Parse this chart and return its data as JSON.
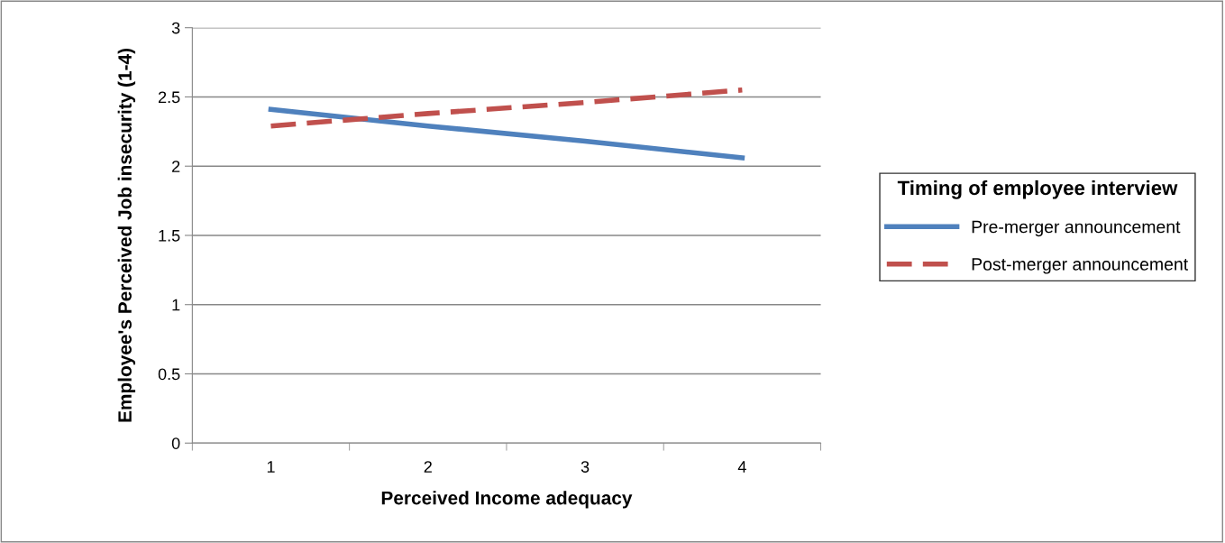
{
  "chart_data": {
    "type": "line",
    "xlabel": "Perceived Income adequacy",
    "ylabel": "Employee's Perceived Job insecurity (1-4)",
    "legend_title": "Timing of employee interview",
    "categories": [
      "1",
      "2",
      "3",
      "4"
    ],
    "series": [
      {
        "name": "Pre-merger announcement",
        "color": "#4f81bd",
        "values": [
          2.41,
          2.29,
          2.18,
          2.06
        ],
        "line_style": "solid"
      },
      {
        "name": "Post-merger announcement",
        "color": "#c0504d",
        "values": [
          2.29,
          2.38,
          2.46,
          2.55
        ],
        "line_style": "dashed"
      }
    ],
    "ylim": [
      0,
      3
    ],
    "yticks": [
      0,
      0.5,
      1,
      1.5,
      2,
      2.5,
      3
    ],
    "grid": "y",
    "legend": "right",
    "marker": "none"
  }
}
